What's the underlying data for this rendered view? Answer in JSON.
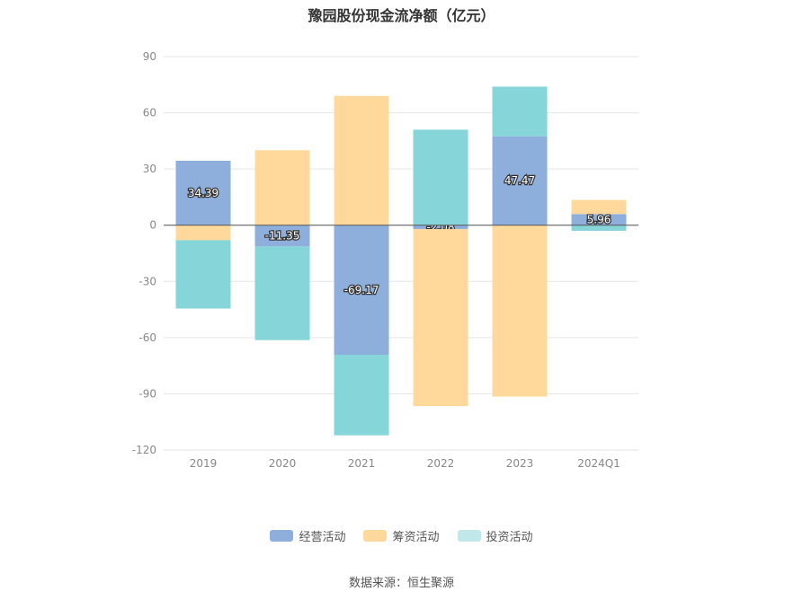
{
  "title": "豫园股份现金流净额（亿元）",
  "source": "数据来源：恒生聚源",
  "chart_data": {
    "type": "bar",
    "stacked": true,
    "categories": [
      "2019",
      "2020",
      "2021",
      "2022",
      "2023",
      "2024Q1"
    ],
    "ylim": [
      -120,
      90
    ],
    "yticks": [
      90,
      60,
      30,
      0,
      -30,
      -60,
      -90,
      -120
    ],
    "grid": true,
    "legend_position": "bottom",
    "series": [
      {
        "name": "经营活动",
        "color": "#8eaedb",
        "values": [
          34.39,
          -11.35,
          -69.17,
          -2.08,
          47.47,
          5.96
        ],
        "labels": [
          "34.39",
          "-11.35",
          "-69.17",
          "-2.08",
          "47.47",
          "5.96"
        ]
      },
      {
        "name": "筹资活动",
        "color": "#ffd99c",
        "values": [
          -8,
          40,
          69,
          -94.5,
          -91.5,
          7.5
        ]
      },
      {
        "name": "投资活动",
        "color": "#86d6d9",
        "values": [
          -36.5,
          -50,
          -43,
          51,
          26.5,
          -3
        ]
      }
    ]
  }
}
